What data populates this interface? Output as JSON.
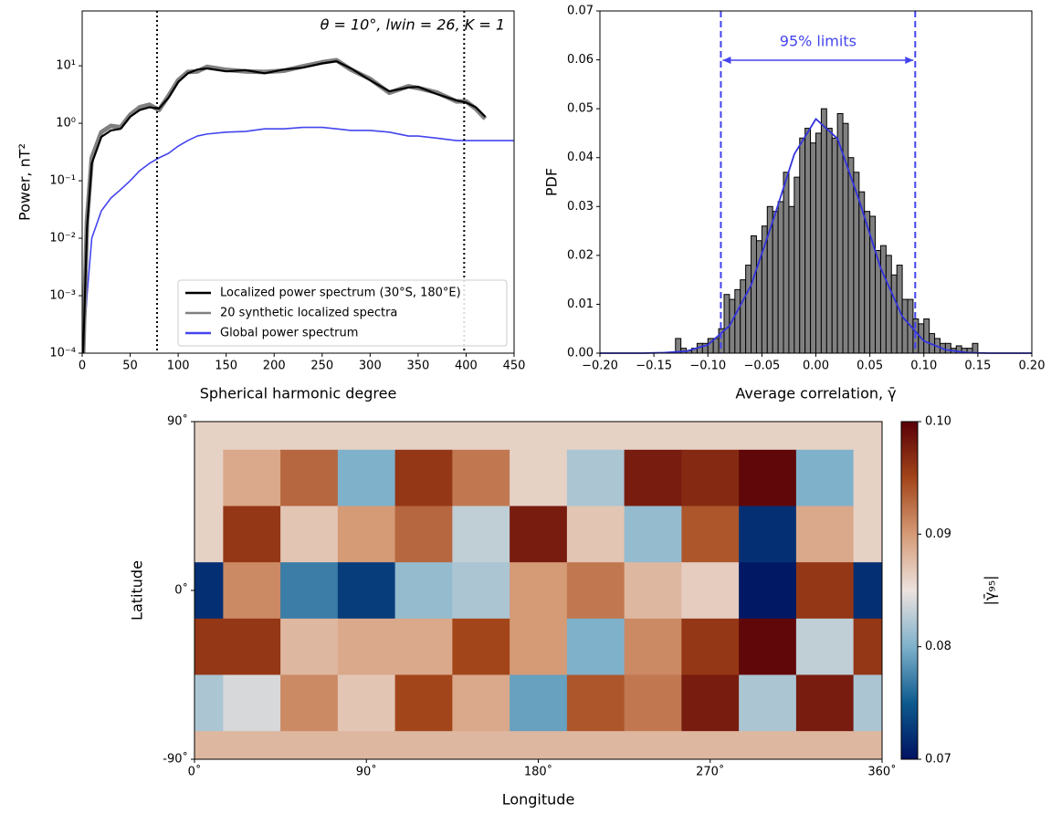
{
  "chart_data": [
    {
      "type": "line",
      "x_label": "Spherical harmonic degree",
      "y_label": "Power, nT²",
      "annotation": "θ = 10°, lwin = 26, K = 1",
      "log_y": true,
      "xlim": [
        0,
        450
      ],
      "ylim": [
        0.0001,
        90
      ],
      "xticks": [
        0,
        50,
        100,
        150,
        200,
        250,
        300,
        350,
        400,
        450
      ],
      "yticks": [
        {
          "value": 0.0001,
          "label": "10⁻⁴"
        },
        {
          "value": 0.001,
          "label": "10⁻³"
        },
        {
          "value": 0.01,
          "label": "10⁻²"
        },
        {
          "value": 0.1,
          "label": "10⁻¹"
        },
        {
          "value": 1,
          "label": "10⁰"
        },
        {
          "value": 10,
          "label": "10¹"
        }
      ],
      "x": [
        1,
        5,
        10,
        20,
        30,
        40,
        50,
        60,
        70,
        80,
        90,
        100,
        110,
        120,
        130,
        150,
        170,
        190,
        210,
        230,
        250,
        265,
        280,
        300,
        320,
        340,
        350,
        370,
        390,
        400,
        410,
        420,
        450
      ],
      "series": [
        {
          "name": "Localized power spectrum (30°S, 180°E)",
          "color": "#000000",
          "values": [
            0.0001,
            0.015,
            0.2,
            0.58,
            0.75,
            0.8,
            1.3,
            1.7,
            1.9,
            1.8,
            2.8,
            5.2,
            7.4,
            8.6,
            9,
            8,
            8.4,
            7.4,
            8.6,
            9.3,
            11,
            12,
            9,
            5.6,
            3.6,
            4.2,
            4.3,
            3.2,
            2.5,
            2.3,
            1.9,
            1.3,
            null
          ]
        },
        {
          "name": "20 synthetic localized spectra",
          "color": "#808080",
          "values": [
            0.0001,
            0.02,
            0.25,
            0.7,
            0.9,
            0.85,
            1.4,
            1.9,
            2.1,
            1.7,
            3,
            5.6,
            7.8,
            8,
            9.6,
            8.5,
            8,
            7.8,
            8.2,
            9.8,
            11.5,
            12.5,
            8.6,
            5.9,
            3.4,
            4.4,
            4.1,
            3.4,
            2.4,
            2.4,
            1.8,
            1.2,
            null
          ]
        },
        {
          "name": "Global power spectrum",
          "color": "#4444ee",
          "values": [
            0.0001,
            0.001,
            0.01,
            0.03,
            0.05,
            0.07,
            0.1,
            0.15,
            0.2,
            0.25,
            0.3,
            0.4,
            0.5,
            0.6,
            0.65,
            0.7,
            0.72,
            0.8,
            0.8,
            0.85,
            0.85,
            0.8,
            0.75,
            0.75,
            0.7,
            0.6,
            0.6,
            0.55,
            0.5,
            0.5,
            0.5,
            0.5,
            0.5
          ]
        }
      ],
      "vlines": [
        78,
        398
      ],
      "legend": "lower right"
    },
    {
      "type": "histogram",
      "x_label": "Average correlation, γ̄",
      "y_label": "PDF",
      "annotation": "95% limits",
      "xlim": [
        -0.2,
        0.2
      ],
      "ylim": [
        0,
        0.07
      ],
      "xticks": [
        {
          "value": -0.2,
          "label": "−0.20"
        },
        {
          "value": -0.15,
          "label": "−0.15"
        },
        {
          "value": -0.1,
          "label": "−0.10"
        },
        {
          "value": -0.05,
          "label": "−0.05"
        },
        {
          "value": 0,
          "label": "0.00"
        },
        {
          "value": 0.05,
          "label": "0.05"
        },
        {
          "value": 0.1,
          "label": "0.10"
        },
        {
          "value": 0.15,
          "label": "0.15"
        },
        {
          "value": 0.2,
          "label": "0.20"
        }
      ],
      "yticks": [
        {
          "value": 0,
          "label": "0.00"
        },
        {
          "value": 0.01,
          "label": "0.01"
        },
        {
          "value": 0.02,
          "label": "0.02"
        },
        {
          "value": 0.03,
          "label": "0.03"
        },
        {
          "value": 0.04,
          "label": "0.04"
        },
        {
          "value": 0.05,
          "label": "0.05"
        },
        {
          "value": 0.06,
          "label": "0.06"
        },
        {
          "value": 0.07,
          "label": "0.07"
        }
      ],
      "bins": [
        -0.13,
        -0.125,
        -0.12,
        -0.115,
        -0.11,
        -0.105,
        -0.1,
        -0.095,
        -0.09,
        -0.085,
        -0.08,
        -0.075,
        -0.07,
        -0.065,
        -0.06,
        -0.055,
        -0.05,
        -0.045,
        -0.04,
        -0.035,
        -0.03,
        -0.025,
        -0.02,
        -0.015,
        -0.01,
        -0.005,
        0,
        0.005,
        0.01,
        0.015,
        0.02,
        0.025,
        0.03,
        0.035,
        0.04,
        0.045,
        0.05,
        0.055,
        0.06,
        0.065,
        0.07,
        0.075,
        0.08,
        0.085,
        0.09,
        0.095,
        0.1,
        0.105,
        0.11,
        0.115,
        0.12,
        0.125,
        0.13,
        0.135,
        0.14,
        0.145,
        0.15
      ],
      "values": [
        0.003,
        0.001,
        0.0005,
        0.001,
        0.002,
        0.002,
        0.003,
        0.003,
        0.005,
        0.012,
        0.011,
        0.013,
        0.015,
        0.018,
        0.024,
        0.023,
        0.026,
        0.03,
        0.029,
        0.031,
        0.037,
        0.03,
        0.036,
        0.044,
        0.046,
        0.043,
        0.045,
        0.05,
        0.046,
        0.044,
        0.049,
        0.047,
        0.04,
        0.037,
        0.033,
        0.029,
        0.028,
        0.021,
        0.022,
        0.02,
        0.016,
        0.018,
        0.011,
        0.011,
        0.007,
        0.006,
        0.007,
        0.004,
        0.003,
        0.002,
        0.002,
        0.001,
        0.0015,
        0.001,
        0.001,
        0.002
      ],
      "color": "#808080",
      "curve": {
        "color": "#3333dd",
        "x": [
          -0.2,
          -0.18,
          -0.16,
          -0.14,
          -0.12,
          -0.1,
          -0.08,
          -0.06,
          -0.04,
          -0.02,
          0,
          0.02,
          0.04,
          0.06,
          0.08,
          0.1,
          0.12,
          0.14,
          0.16,
          0.18,
          0.2
        ],
        "values": [
          0,
          0,
          0,
          0.0001,
          0.0004,
          0.0017,
          0.0056,
          0.0139,
          0.0269,
          0.0407,
          0.0479,
          0.0439,
          0.0313,
          0.0174,
          0.0075,
          0.0025,
          0.0007,
          0.0001,
          0,
          0,
          0
        ]
      },
      "vlines": [
        -0.088,
        0.092
      ],
      "vline_color": "#4444ee"
    },
    {
      "type": "heatmap",
      "x_label": "Longitude",
      "y_label": "Latitude",
      "colorbar_label": "|γ̄₉₅|",
      "xlim": [
        0,
        360
      ],
      "ylim": [
        -90,
        90
      ],
      "xticks": [
        {
          "value": 0,
          "label": "0˚"
        },
        {
          "value": 90,
          "label": "90˚"
        },
        {
          "value": 180,
          "label": "180˚"
        },
        {
          "value": 270,
          "label": "270˚"
        },
        {
          "value": 360,
          "label": "360˚"
        }
      ],
      "yticks": [
        {
          "value": 90,
          "label": "90˚"
        },
        {
          "value": 0,
          "label": "0˚"
        },
        {
          "value": -90,
          "label": "-90˚"
        }
      ],
      "x": [
        0,
        30,
        60,
        90,
        120,
        150,
        180,
        210,
        240,
        270,
        300,
        330,
        360
      ],
      "y": [
        90,
        60,
        30,
        0,
        -30,
        -60,
        -90
      ],
      "z": [
        [
          0.0862,
          0.0862,
          0.0862,
          0.0862,
          0.0862,
          0.0862,
          0.0862,
          0.0862,
          0.0862,
          0.0862,
          0.0862,
          0.0862,
          0.0862
        ],
        [
          0.0862,
          0.089,
          0.093,
          0.08,
          0.096,
          0.092,
          0.0862,
          0.082,
          0.098,
          0.097,
          0.0995,
          0.08,
          0.0862
        ],
        [
          0.0862,
          0.096,
          0.087,
          0.09,
          0.093,
          0.083,
          0.098,
          0.087,
          0.081,
          0.094,
          0.072,
          0.089,
          0.0862
        ],
        [
          0.072,
          0.091,
          0.077,
          0.073,
          0.081,
          0.082,
          0.09,
          0.092,
          0.088,
          0.0865,
          0.0705,
          0.096,
          0.072
        ],
        [
          0.096,
          0.096,
          0.088,
          0.089,
          0.089,
          0.095,
          0.09,
          0.08,
          0.091,
          0.096,
          0.0995,
          0.083,
          0.096
        ],
        [
          0.082,
          0.084,
          0.091,
          0.087,
          0.095,
          0.089,
          0.079,
          0.094,
          0.092,
          0.098,
          0.082,
          0.098,
          0.082
        ],
        [
          0.088,
          0.088,
          0.088,
          0.088,
          0.088,
          0.088,
          0.088,
          0.088,
          0.088,
          0.088,
          0.088,
          0.088,
          0.088
        ]
      ],
      "clim": [
        0.07,
        0.1
      ],
      "cticks": [
        0.07,
        0.08,
        0.09,
        {
          "value": 0.1,
          "label": "0.10"
        }
      ],
      "colormap": [
        "#001261",
        "#0d5a8e",
        "#7fb1cb",
        "#ece2de",
        "#d59a76",
        "#a3451a",
        "#590007"
      ]
    }
  ]
}
